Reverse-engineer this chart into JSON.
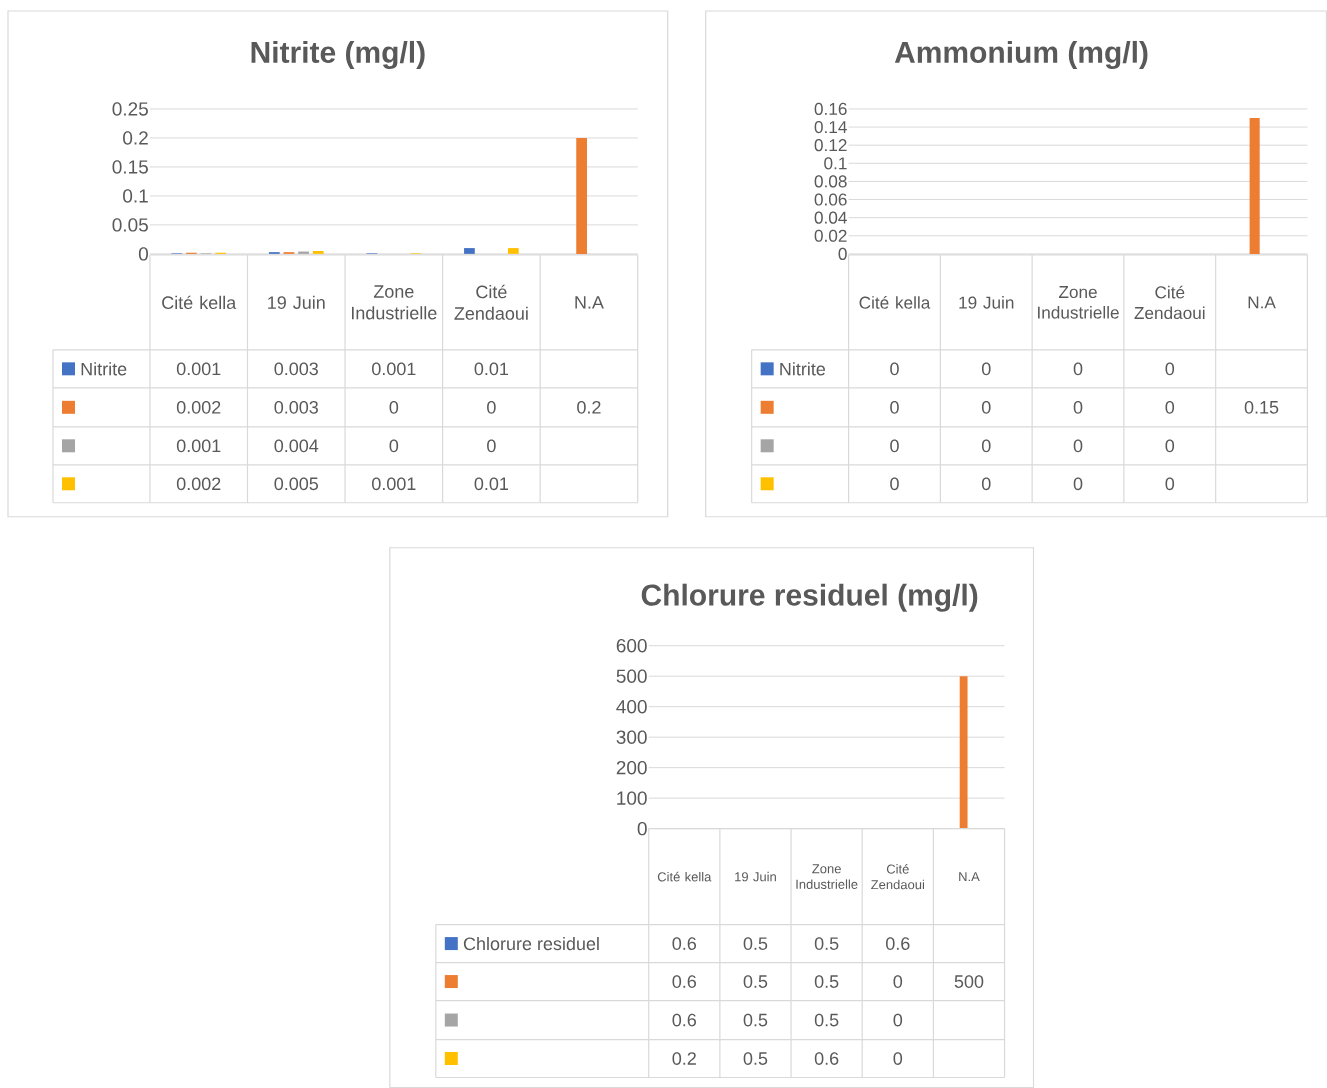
{
  "chart_data": [
    {
      "type": "bar",
      "title": "Nitrite (mg/l)",
      "categories": [
        "Cité kella",
        "19 Juin",
        "Zone Industrielle",
        "Cité Zendaoui",
        "N.A"
      ],
      "series": [
        {
          "name": "Nitrite",
          "color": "#4472c4",
          "values": [
            0.001,
            0.003,
            0.001,
            0.01,
            null
          ]
        },
        {
          "color": "#ed7d31",
          "values": [
            0.002,
            0.003,
            0,
            0,
            0.2
          ]
        },
        {
          "color": "#a5a5a5",
          "values": [
            0.001,
            0.004,
            0,
            0,
            null
          ]
        },
        {
          "color": "#ffc000",
          "values": [
            0.002,
            0.005,
            0.001,
            0.01,
            null
          ]
        }
      ],
      "ylim": [
        0,
        0.25
      ],
      "yticks": [
        0,
        0.05,
        0.1,
        0.15,
        0.2,
        0.25
      ],
      "grid": "y",
      "legend": "bottom",
      "data_labels": true
    },
    {
      "type": "bar",
      "title": "Ammonium (mg/l)",
      "categories": [
        "Cité kella",
        "19 Juin",
        "Zone Industrielle",
        "Cité Zendaoui",
        "N.A"
      ],
      "series": [
        {
          "name": "Nitrite",
          "color": "#4472c4",
          "values": [
            0,
            0,
            0,
            0,
            null
          ]
        },
        {
          "color": "#ed7d31",
          "values": [
            0,
            0,
            0,
            0,
            0.15
          ]
        },
        {
          "color": "#a5a5a5",
          "values": [
            0,
            0,
            0,
            0,
            null
          ]
        },
        {
          "color": "#ffc000",
          "values": [
            0,
            0,
            0,
            0,
            null
          ]
        }
      ],
      "ylim": [
        0,
        0.16
      ],
      "yticks": [
        0,
        0.02,
        0.04,
        0.06,
        0.08,
        0.1,
        0.12,
        0.14,
        0.16
      ],
      "grid": "y",
      "legend": "bottom",
      "data_labels": true
    },
    {
      "type": "bar",
      "title": "Chlorure residuel (mg/l)",
      "categories": [
        "Cité kella",
        "19 Juin",
        "Zone Industrielle",
        "Cité Zendaoui",
        "N.A"
      ],
      "series": [
        {
          "name": "Chlorure residuel",
          "color": "#4472c4",
          "values": [
            0.6,
            0.5,
            0.5,
            0.6,
            null
          ]
        },
        {
          "color": "#ed7d31",
          "values": [
            0.6,
            0.5,
            0.5,
            0,
            500
          ]
        },
        {
          "color": "#a5a5a5",
          "values": [
            0.6,
            0.5,
            0.5,
            0,
            null
          ]
        },
        {
          "color": "#ffc000",
          "values": [
            0.2,
            0.5,
            0.6,
            0,
            null
          ]
        }
      ],
      "ylim": [
        0,
        600
      ],
      "yticks": [
        0,
        100,
        200,
        300,
        400,
        500,
        600
      ],
      "grid": "y",
      "legend": "bottom",
      "data_labels": true
    }
  ]
}
